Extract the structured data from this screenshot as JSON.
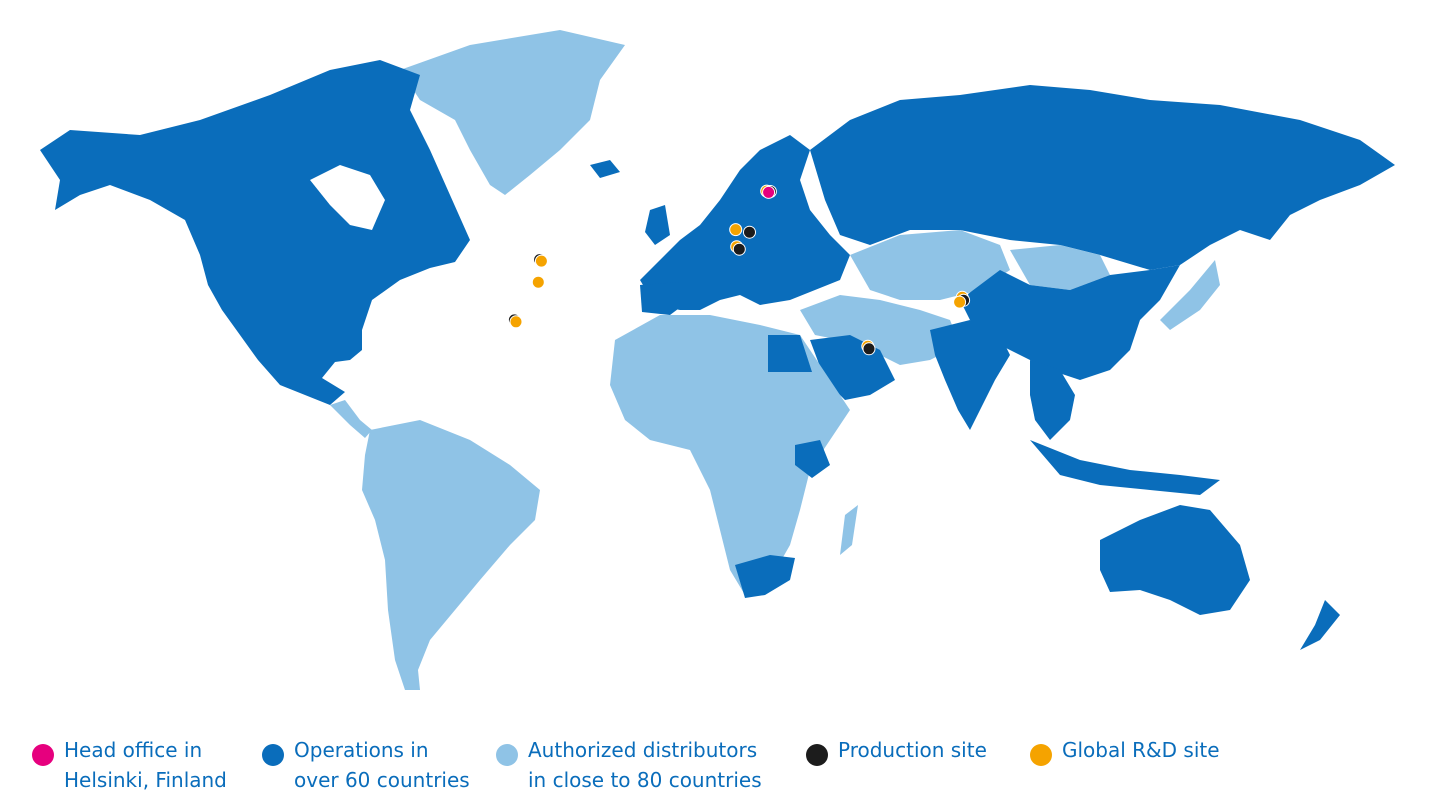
{
  "colors": {
    "operations": "#0a6dbb",
    "distributors": "#8fc3e6",
    "head_office": "#e6007e",
    "production": "#1c1c1c",
    "rnd": "#f5a300",
    "legend_text": "#0a6dbb"
  },
  "legend": [
    {
      "key": "head_office",
      "line1": "Head office in",
      "line2": "Helsinki, Finland"
    },
    {
      "key": "operations",
      "line1": "Operations in",
      "line2": "over 60 countries"
    },
    {
      "key": "distributors",
      "line1": "Authorized distributors",
      "line2": "in close to 80 countries"
    },
    {
      "key": "production",
      "line1": "Production site",
      "line2": ""
    },
    {
      "key": "rnd",
      "line1": "Global R&D site",
      "line2": ""
    }
  ],
  "markers": [
    {
      "type": "rnd",
      "lat": 60.5,
      "lon": 24.0
    },
    {
      "type": "production",
      "lat": 60.4,
      "lon": 25.8
    },
    {
      "type": "head_office",
      "lat": 60.17,
      "lon": 24.94
    },
    {
      "type": "rnd",
      "lat": 50.1,
      "lon": 8.7
    },
    {
      "type": "production",
      "lat": 49.4,
      "lon": 15.5
    },
    {
      "type": "rnd",
      "lat": 45.5,
      "lon": 9.2
    },
    {
      "type": "production",
      "lat": 44.8,
      "lon": 10.5
    },
    {
      "type": "production",
      "lat": 42.0,
      "lon": -87.9
    },
    {
      "type": "rnd",
      "lat": 41.6,
      "lon": -87.0
    },
    {
      "type": "rnd",
      "lat": 35.9,
      "lon": -88.5
    },
    {
      "type": "production",
      "lat": 25.7,
      "lon": -100.3
    },
    {
      "type": "rnd",
      "lat": 25.2,
      "lon": -99.5
    },
    {
      "type": "rnd",
      "lat": 31.8,
      "lon": 120.3
    },
    {
      "type": "production",
      "lat": 31.0,
      "lon": 121.0
    },
    {
      "type": "rnd",
      "lat": 30.5,
      "lon": 119.0
    },
    {
      "type": "rnd",
      "lat": 18.6,
      "lon": 73.8
    },
    {
      "type": "production",
      "lat": 17.9,
      "lon": 74.4
    }
  ]
}
